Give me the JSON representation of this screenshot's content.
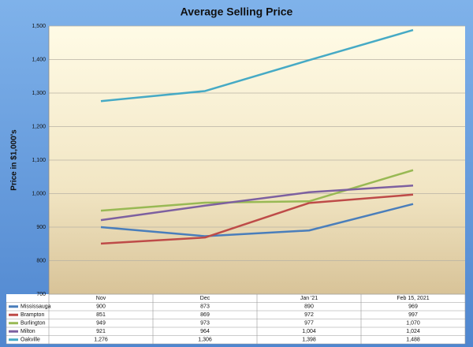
{
  "chart_data": {
    "type": "line",
    "title": "Average Selling Price",
    "y_label": "Price in $1,000's",
    "categories": [
      "Nov",
      "Dec",
      "Jan '21",
      "Feb 15, 2021"
    ],
    "ylim": [
      700,
      1500
    ],
    "yticks": [
      700,
      800,
      900,
      {
        "value": 1000,
        "label": "1,000"
      },
      {
        "value": 1100,
        "label": "1,100"
      },
      {
        "value": 1200,
        "label": "1,200"
      },
      {
        "value": 1300,
        "label": "1,300"
      },
      {
        "value": 1400,
        "label": "1,400"
      },
      {
        "value": 1500,
        "label": "1,500"
      }
    ],
    "grid": true,
    "series": [
      {
        "name": "Mississauga",
        "color": "#4a7ebb",
        "values": [
          900,
          873,
          890,
          969
        ],
        "value_labels": [
          "900",
          "873",
          "890",
          "969"
        ]
      },
      {
        "name": "Brampton",
        "color": "#be4b48",
        "values": [
          851,
          869,
          972,
          997
        ],
        "value_labels": [
          "851",
          "869",
          "972",
          "997"
        ]
      },
      {
        "name": "Burlington",
        "color": "#98b954",
        "values": [
          949,
          973,
          977,
          1070
        ],
        "value_labels": [
          "949",
          "973",
          "977",
          "1,070"
        ]
      },
      {
        "name": "Milton",
        "color": "#7d60a0",
        "values": [
          921,
          964,
          1004,
          1024
        ],
        "value_labels": [
          "921",
          "964",
          "1,004",
          "1,024"
        ]
      },
      {
        "name": "Oakville",
        "color": "#46aac5",
        "values": [
          1276,
          1306,
          1398,
          1488
        ],
        "value_labels": [
          "1,276",
          "1,306",
          "1,398",
          "1,488"
        ]
      }
    ]
  }
}
